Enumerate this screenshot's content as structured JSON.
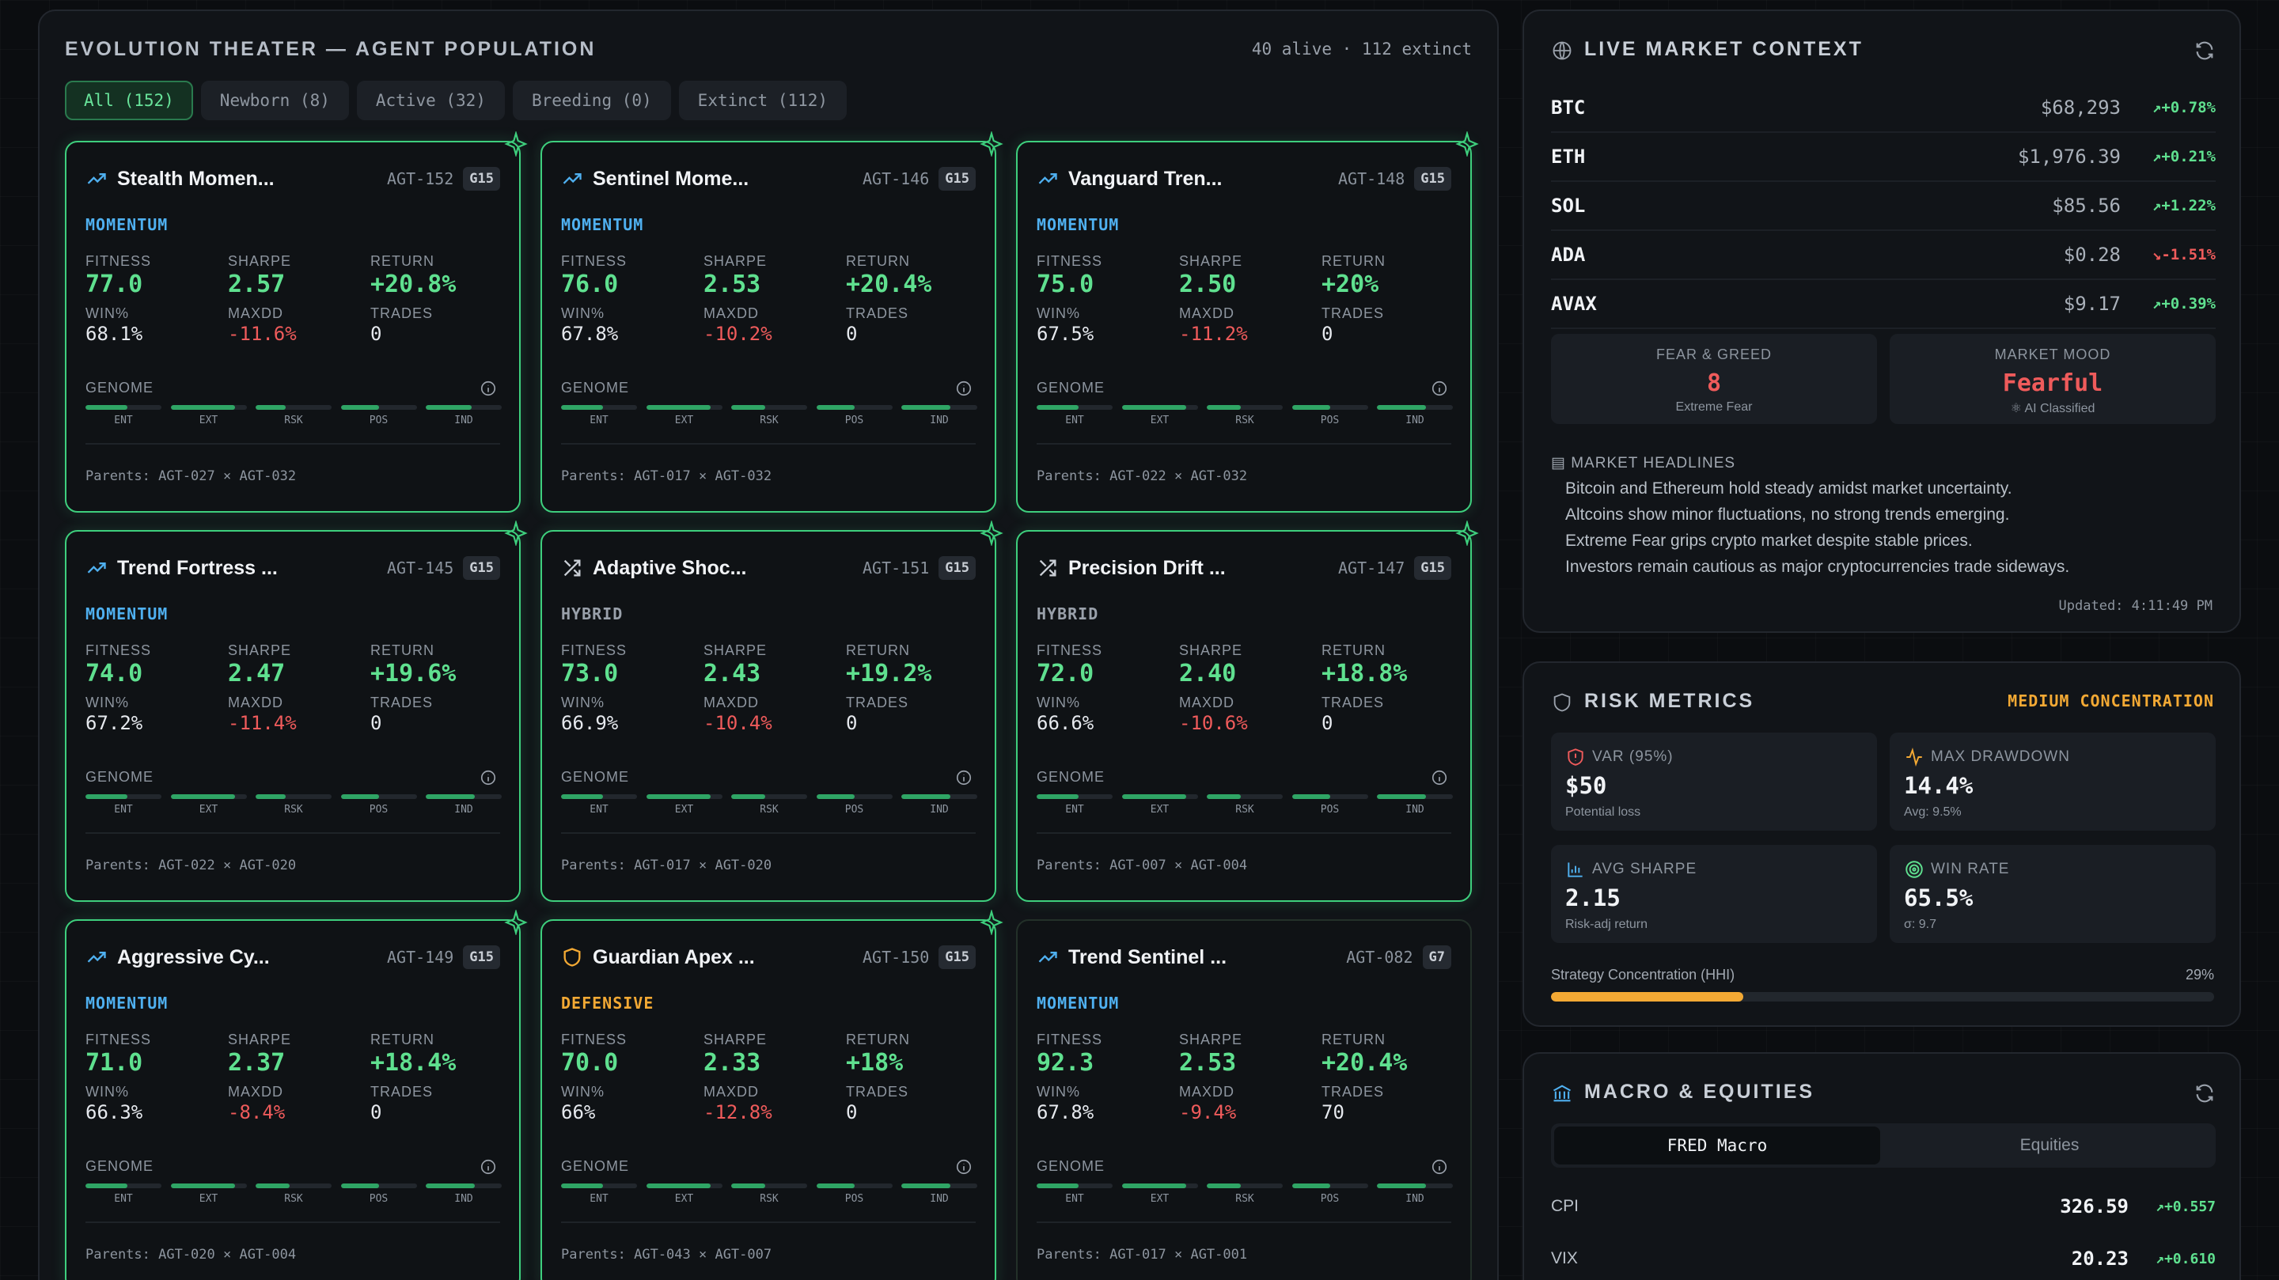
{
  "theater": {
    "title": "EVOLUTION THEATER — AGENT POPULATION",
    "counts": "40 alive · 112 extinct",
    "tabs": [
      {
        "label": "All (152)",
        "active": true
      },
      {
        "label": "Newborn (8)",
        "active": false
      },
      {
        "label": "Active (32)",
        "active": false
      },
      {
        "label": "Breeding (0)",
        "active": false
      },
      {
        "label": "Extinct (112)",
        "active": false
      }
    ],
    "labels": {
      "fitness": "FITNESS",
      "sharpe": "SHARPE",
      "return": "RETURN",
      "win": "WIN%",
      "maxdd": "MAXDD",
      "trades": "TRADES",
      "genome": "GENOME"
    },
    "gene_labels": [
      "ENT",
      "EXT",
      "RSK",
      "POS",
      "IND"
    ],
    "agents": [
      {
        "name": "Stealth Momen...",
        "id": "AGT-152",
        "gen": "G15",
        "strategy": "MOMENTUM",
        "icon": "trend-up-icon",
        "fitness": "77.0",
        "sharpe": "2.57",
        "ret": "+20.8%",
        "win": "68.1%",
        "maxdd": "-11.6%",
        "trades": "0",
        "parents": "Parents: AGT-027 × AGT-032",
        "highlight": true,
        "genes": [
          0.55,
          0.85,
          0.4,
          0.5,
          0.6
        ]
      },
      {
        "name": "Sentinel Mome...",
        "id": "AGT-146",
        "gen": "G15",
        "strategy": "MOMENTUM",
        "icon": "trend-up-icon",
        "fitness": "76.0",
        "sharpe": "2.53",
        "ret": "+20.4%",
        "win": "67.8%",
        "maxdd": "-10.2%",
        "trades": "0",
        "parents": "Parents: AGT-017 × AGT-032",
        "highlight": true,
        "genes": [
          0.55,
          0.85,
          0.45,
          0.5,
          0.65
        ]
      },
      {
        "name": "Vanguard Tren...",
        "id": "AGT-148",
        "gen": "G15",
        "strategy": "MOMENTUM",
        "icon": "trend-up-icon",
        "fitness": "75.0",
        "sharpe": "2.50",
        "ret": "+20%",
        "win": "67.5%",
        "maxdd": "-11.2%",
        "trades": "0",
        "parents": "Parents: AGT-022 × AGT-032",
        "highlight": true,
        "genes": [
          0.55,
          0.85,
          0.45,
          0.5,
          0.65
        ]
      },
      {
        "name": "Trend Fortress ...",
        "id": "AGT-145",
        "gen": "G15",
        "strategy": "MOMENTUM",
        "icon": "trend-up-icon",
        "fitness": "74.0",
        "sharpe": "2.47",
        "ret": "+19.6%",
        "win": "67.2%",
        "maxdd": "-11.4%",
        "trades": "0",
        "parents": "Parents: AGT-022 × AGT-020",
        "highlight": true,
        "genes": [
          0.55,
          0.85,
          0.4,
          0.5,
          0.65
        ]
      },
      {
        "name": "Adaptive Shoc...",
        "id": "AGT-151",
        "gen": "G15",
        "strategy": "HYBRID",
        "icon": "shuffle-icon",
        "fitness": "73.0",
        "sharpe": "2.43",
        "ret": "+19.2%",
        "win": "66.9%",
        "maxdd": "-10.4%",
        "trades": "0",
        "parents": "Parents: AGT-017 × AGT-020",
        "highlight": true,
        "genes": [
          0.55,
          0.85,
          0.45,
          0.5,
          0.65
        ]
      },
      {
        "name": "Precision Drift ...",
        "id": "AGT-147",
        "gen": "G15",
        "strategy": "HYBRID",
        "icon": "shuffle-icon",
        "fitness": "72.0",
        "sharpe": "2.40",
        "ret": "+18.8%",
        "win": "66.6%",
        "maxdd": "-10.6%",
        "trades": "0",
        "parents": "Parents: AGT-007 × AGT-004",
        "highlight": true,
        "genes": [
          0.55,
          0.85,
          0.45,
          0.5,
          0.65
        ]
      },
      {
        "name": "Aggressive Cy...",
        "id": "AGT-149",
        "gen": "G15",
        "strategy": "MOMENTUM",
        "icon": "trend-up-icon",
        "fitness": "71.0",
        "sharpe": "2.37",
        "ret": "+18.4%",
        "win": "66.3%",
        "maxdd": "-8.4%",
        "trades": "0",
        "parents": "Parents: AGT-020 × AGT-004",
        "highlight": true,
        "genes": [
          0.55,
          0.85,
          0.45,
          0.5,
          0.65
        ]
      },
      {
        "name": "Guardian Apex ...",
        "id": "AGT-150",
        "gen": "G15",
        "strategy": "DEFENSIVE",
        "icon": "shield-icon",
        "fitness": "70.0",
        "sharpe": "2.33",
        "ret": "+18%",
        "win": "66%",
        "maxdd": "-12.8%",
        "trades": "0",
        "parents": "Parents: AGT-043 × AGT-007",
        "highlight": true,
        "genes": [
          0.55,
          0.85,
          0.45,
          0.5,
          0.65
        ]
      },
      {
        "name": "Trend Sentinel ...",
        "id": "AGT-082",
        "gen": "G7",
        "strategy": "MOMENTUM",
        "icon": "trend-up-icon",
        "fitness": "92.3",
        "sharpe": "2.53",
        "ret": "+20.4%",
        "win": "67.8%",
        "maxdd": "-9.4%",
        "trades": "70",
        "parents": "Parents: AGT-017 × AGT-001",
        "highlight": false,
        "genes": [
          0.55,
          0.85,
          0.45,
          0.5,
          0.65
        ]
      }
    ]
  },
  "market": {
    "title": "LIVE MARKET CONTEXT",
    "rows": [
      {
        "symbol": "BTC",
        "price": "$68,293",
        "change": "+0.78%",
        "dir": "up"
      },
      {
        "symbol": "ETH",
        "price": "$1,976.39",
        "change": "+0.21%",
        "dir": "up"
      },
      {
        "symbol": "SOL",
        "price": "$85.56",
        "change": "+1.22%",
        "dir": "up"
      },
      {
        "symbol": "ADA",
        "price": "$0.28",
        "change": "-1.51%",
        "dir": "down"
      },
      {
        "symbol": "AVAX",
        "price": "$9.17",
        "change": "+0.39%",
        "dir": "up"
      }
    ],
    "fear_greed": {
      "label": "FEAR & GREED",
      "value": "8",
      "sub": "Extreme Fear"
    },
    "mood": {
      "label": "MARKET MOOD",
      "value": "Fearful",
      "sub": "AI Classified"
    },
    "headlines_title": "MARKET HEADLINES",
    "headlines": [
      "Bitcoin and Ethereum hold steady amidst market uncertainty.",
      "Altcoins show minor fluctuations, no strong trends emerging.",
      "Extreme Fear grips crypto market despite stable prices.",
      "Investors remain cautious as major cryptocurrencies trade sideways."
    ],
    "updated": "Updated: 4:11:49 PM"
  },
  "risk": {
    "title": "RISK METRICS",
    "concentration": "MEDIUM CONCENTRATION",
    "boxes": [
      {
        "label": "VAR (95%)",
        "value": "$50",
        "sub": "Potential loss",
        "icon": "shield-alert-icon"
      },
      {
        "label": "MAX DRAWDOWN",
        "value": "14.4%",
        "sub": "Avg: 9.5%",
        "icon": "activity-icon"
      },
      {
        "label": "AVG SHARPE",
        "value": "2.15",
        "sub": "Risk-adj return",
        "icon": "bar-chart-icon"
      },
      {
        "label": "WIN RATE",
        "value": "65.5%",
        "sub": "σ: 9.7",
        "icon": "target-icon"
      }
    ],
    "hhi_label": "Strategy Concentration (HHI)",
    "hhi_pct": "29%",
    "hhi_value": 0.29
  },
  "macro": {
    "title": "MACRO & EQUITIES",
    "tabs": [
      "FRED Macro",
      "Equities"
    ],
    "rows": [
      {
        "name": "CPI",
        "value": "326.59",
        "change": "+0.557"
      },
      {
        "name": "VIX",
        "value": "20.23",
        "change": "+0.610"
      }
    ]
  },
  "colors": {
    "accent": "#3ecf7d",
    "momentum": "#4fb0f0",
    "hybrid": "#9aa1ab",
    "defensive": "#f3a934",
    "negative": "#ef5b5b",
    "warning": "#f3a934"
  }
}
